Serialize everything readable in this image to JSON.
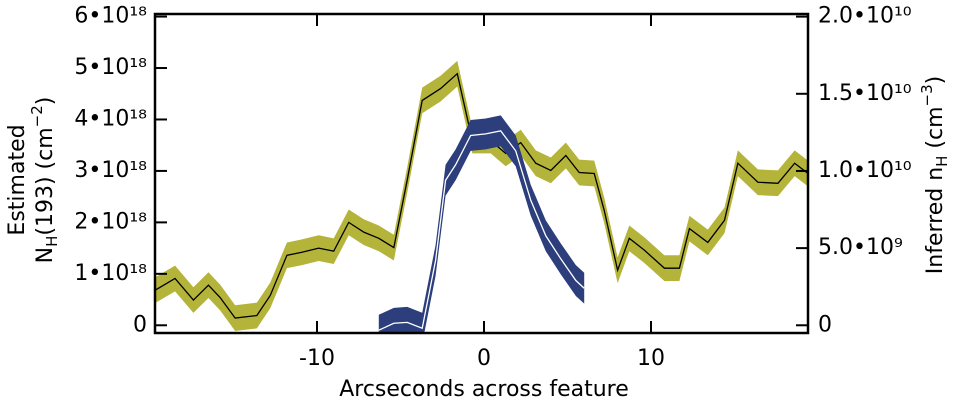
{
  "chart_data": {
    "type": "band-line",
    "x_label": "Arcseconds across feature",
    "y_label": [
      "Estimated",
      "N",
      "H",
      "(193)  (cm",
      "−2",
      ")"
    ],
    "y2_label": [
      "Inferred n",
      "H",
      " (cm",
      "−3",
      ")"
    ],
    "xlim": [
      -19.7,
      19.4
    ],
    "xticks": [
      -10,
      0,
      10
    ],
    "ylim": [
      -1.5e+17,
      6.05e+18
    ],
    "yticks": [
      0,
      {
        "value": 1e+18,
        "label": "1•10¹⁸"
      },
      {
        "value": 2e+18,
        "label": "2•10¹⁸"
      },
      {
        "value": 3e+18,
        "label": "3•10¹⁸"
      },
      {
        "value": 4e+18,
        "label": "4•10¹⁸"
      },
      {
        "value": 5e+18,
        "label": "5•10¹⁸"
      },
      {
        "value": 6e+18,
        "label": "6•10¹⁸"
      }
    ],
    "y2lim": [
      -500000000.0,
      20170000000.0
    ],
    "y2ticks": [
      0,
      {
        "value": 5000000000.0,
        "label": "5.0•10⁹"
      },
      {
        "value": 10000000000.0,
        "label": "1.0•10¹⁰"
      },
      {
        "value": 15000000000.0,
        "label": "1.5•10¹⁰"
      },
      {
        "value": 20000000000.0,
        "label": "2.0•10¹⁰"
      }
    ],
    "series": [
      {
        "axis": "y",
        "color": "#b5b43a",
        "line_color": "#000000",
        "error": 2.5e+17,
        "x": [
          -19.7,
          -18.5,
          -17.4,
          -16.5,
          -15.8,
          -14.9,
          -13.6,
          -12.8,
          -11.8,
          -10.9,
          -9.9,
          -9.0,
          -8.1,
          -7.2,
          -6.3,
          -5.4,
          -4.6,
          -3.7,
          -2.6,
          -1.6,
          -0.7,
          0.4,
          1.3,
          2.2,
          3.1,
          4.0,
          4.9,
          5.7,
          6.6,
          7.2,
          8.0,
          8.7,
          9.6,
          10.8,
          11.7,
          12.3,
          13.4,
          14.4,
          15.2,
          16.4,
          17.6,
          18.6,
          19.4
        ],
        "values": [
          6.8e+17,
          9.1e+17,
          4.9e+17,
          7.8e+17,
          5.4e+17,
          1.4e+17,
          1.9e+17,
          5.8e+17,
          1.36e+18,
          1.42e+18,
          1.5e+18,
          1.44e+18,
          2e+18,
          1.81e+18,
          1.69e+18,
          1.51e+18,
          2.82e+18,
          4.37e+18,
          4.6e+18,
          4.89e+18,
          3.59e+18,
          3.59e+18,
          3.34e+18,
          3.55e+18,
          3.15e+18,
          3.01e+18,
          3.3e+18,
          2.97e+18,
          2.95e+18,
          2.23e+18,
          1.07e+18,
          1.69e+18,
          1.46e+18,
          1.11e+18,
          1.11e+18,
          1.88e+18,
          1.61e+18,
          2.04e+18,
          3.15e+18,
          2.78e+18,
          2.76e+18,
          3.15e+18,
          2.95e+18
        ]
      },
      {
        "axis": "y2",
        "color": "#2c3e7c",
        "line_color": "#ffffff",
        "error": 1000000000.0,
        "x": [
          -6.3,
          -5.4,
          -4.6,
          -3.7,
          -2.9,
          -2.3,
          -1.7,
          -0.8,
          0.1,
          1.0,
          1.9,
          2.8,
          3.7,
          4.6,
          5.5,
          6.0
        ],
        "values": [
          -320000000.0,
          130000000.0,
          190000000.0,
          -190000000.0,
          4200000000.0,
          9400000000.0,
          10400000000.0,
          12300000000.0,
          12400000000.0,
          12600000000.0,
          11300000000.0,
          8100000000.0,
          5800000000.0,
          4300000000.0,
          2900000000.0,
          2400000000.0
        ]
      }
    ]
  }
}
